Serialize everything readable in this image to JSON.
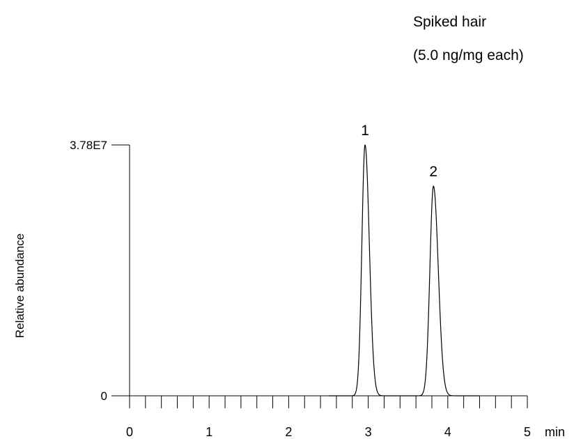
{
  "annotation": {
    "line1": "Spiked hair",
    "line2": "(5.0 ng/mg each)"
  },
  "chart_data": {
    "type": "line",
    "title": "",
    "xlabel": "min",
    "ylabel": "Relative abundance",
    "xlim": [
      0,
      5
    ],
    "ylim": [
      0,
      37800000
    ],
    "x_ticks": [
      "0",
      "1",
      "2",
      "3",
      "4",
      "5"
    ],
    "x_minor_step": 0.2,
    "y_ticks": [
      {
        "value": 0,
        "label": "0"
      },
      {
        "value": 37800000,
        "label": "3.78E7"
      }
    ],
    "grid": false,
    "baseline_x_range": [
      2.5,
      4.4
    ],
    "peaks": [
      {
        "label": "1",
        "x": 2.96,
        "height": 37800000,
        "width": 0.04
      },
      {
        "label": "2",
        "x": 3.82,
        "height": 31600000,
        "width": 0.045
      }
    ],
    "colors": {
      "line": "#000000",
      "axis": "#000000"
    }
  }
}
